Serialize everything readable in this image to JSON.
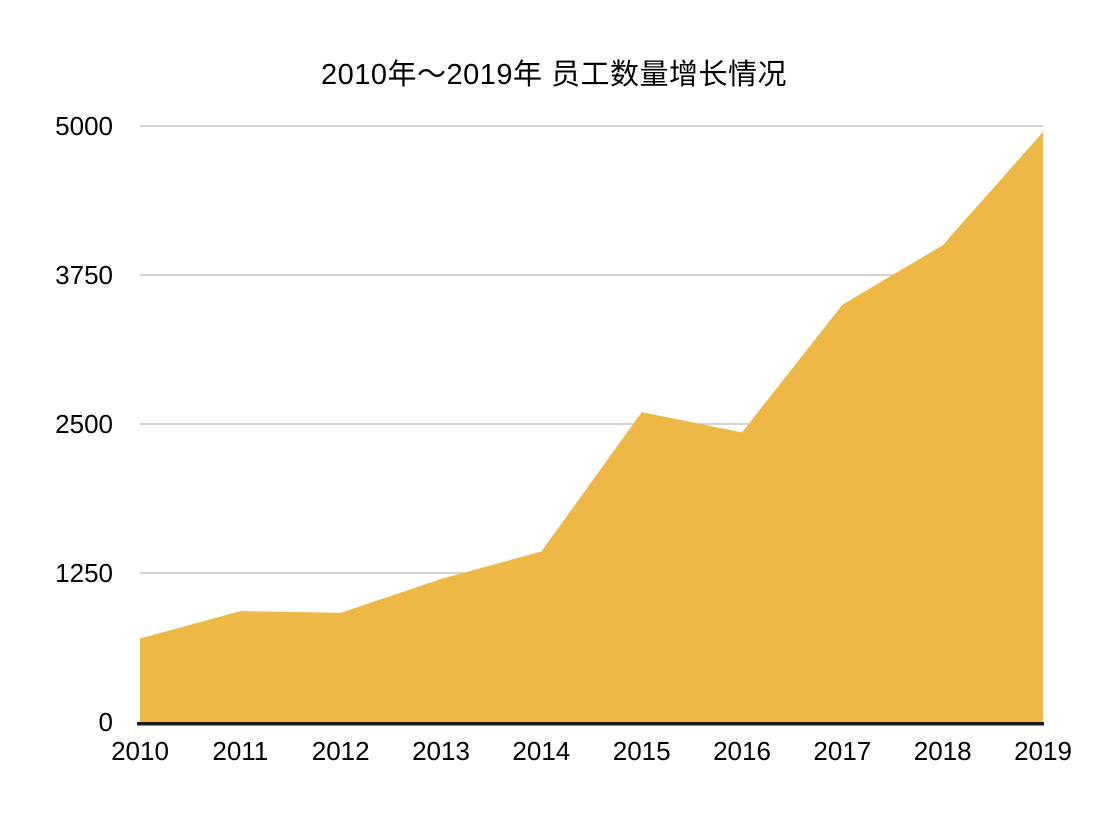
{
  "chart_data": {
    "type": "area",
    "title": "2010年～2019年 员工数量增长情况",
    "categories": [
      "2010",
      "2011",
      "2012",
      "2013",
      "2014",
      "2015",
      "2016",
      "2017",
      "2018",
      "2019"
    ],
    "series": [
      {
        "name": "员工数量",
        "values": [
          700,
          930,
          915,
          1200,
          1430,
          2600,
          2430,
          3500,
          4000,
          4950
        ]
      }
    ],
    "xlabel": "",
    "ylabel": "",
    "ylim": [
      0,
      5000
    ],
    "yticks": [
      0,
      1250,
      2500,
      3750,
      5000
    ],
    "grid": true,
    "legend_position": "none",
    "colors": {
      "area_fill": "#EDB845",
      "gridline": "#C5C5C5",
      "axis_line": "#1A1A1A",
      "text": "#000000",
      "background": "#FFFFFF"
    }
  }
}
